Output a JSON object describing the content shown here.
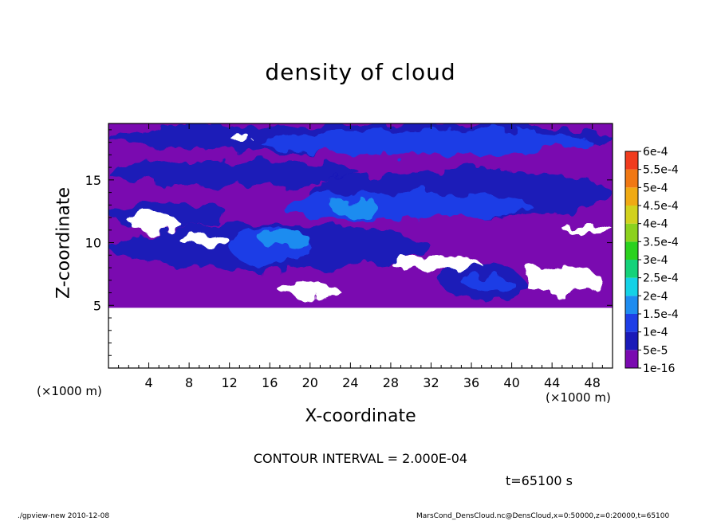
{
  "chart_data": {
    "type": "heatmap",
    "title": "density of cloud",
    "xlabel": "X-coordinate",
    "ylabel": "Z-coordinate",
    "x_unit_label": "(×1000 m)",
    "y_unit_label": "(×1000 m)",
    "xlim": [
      0,
      50
    ],
    "ylim": [
      0,
      19.5
    ],
    "x_ticks": [
      4,
      8,
      12,
      16,
      20,
      24,
      28,
      32,
      36,
      40,
      44,
      48
    ],
    "y_ticks": [
      5,
      10,
      15
    ],
    "colorbar": {
      "levels": [
        "1e-16",
        "5e-5",
        "1e-4",
        "1.5e-4",
        "2e-4",
        "2.5e-4",
        "3e-4",
        "3.5e-4",
        "4e-4",
        "4.5e-4",
        "5e-4",
        "5.5e-4",
        "6e-4"
      ],
      "colors": [
        "#7a0ab0",
        "#1a1ab8",
        "#1e3ee6",
        "#1e8cf0",
        "#14d2e6",
        "#14d27a",
        "#2ad21e",
        "#8cd21e",
        "#d2d21e",
        "#f0aa14",
        "#f07814",
        "#f03c1e",
        "#f09696"
      ]
    },
    "annotation_contour": "CONTOUR INTERVAL = 2.000E-04",
    "annotation_time": "t=65100 s",
    "footer_left": "./gpview-new   2010-12-08",
    "footer_right": "MarsCond_DensCloud.nc@DensCloud,x=0:50000,z=0:20000,t=65100",
    "field": {
      "background_level": "1e-16",
      "cloud_base_z": 4.8,
      "cloud_top_z": 19.5,
      "regions": [
        {
          "level": "5e-5",
          "x": [
            0,
            50
          ],
          "z": [
            17.2,
            19.5
          ]
        },
        {
          "level": "1e-4",
          "x": [
            15,
            48
          ],
          "z": [
            17.0,
            19.0
          ]
        },
        {
          "level": "5e-5",
          "x": [
            0,
            25
          ],
          "z": [
            14.5,
            16.5
          ]
        },
        {
          "level": "5e-5",
          "x": [
            20,
            50
          ],
          "z": [
            12.0,
            15.8
          ]
        },
        {
          "level": "1e-4",
          "x": [
            17,
            42
          ],
          "z": [
            11.8,
            14.0
          ]
        },
        {
          "level": "1.5e-4",
          "x": [
            22,
            27
          ],
          "z": [
            12.2,
            13.4
          ]
        },
        {
          "level": "5e-5",
          "x": [
            0,
            12
          ],
          "z": [
            11.2,
            13.2
          ]
        },
        {
          "level": "5e-5",
          "x": [
            0,
            32
          ],
          "z": [
            7.8,
            11.5
          ]
        },
        {
          "level": "1e-4",
          "x": [
            12,
            20
          ],
          "z": [
            8.2,
            11.2
          ]
        },
        {
          "level": "1.5e-4",
          "x": [
            15,
            20
          ],
          "z": [
            9.5,
            11.0
          ]
        },
        {
          "level": "5e-5",
          "x": [
            33,
            41
          ],
          "z": [
            5.4,
            8.4
          ]
        },
        {
          "level": "1e-4",
          "x": [
            35,
            40
          ],
          "z": [
            6.2,
            7.6
          ]
        }
      ],
      "clear_regions": [
        {
          "x": [
            28,
            37
          ],
          "z": [
            7.8,
            8.8
          ]
        },
        {
          "x": [
            41,
            49
          ],
          "z": [
            6.0,
            8.0
          ]
        },
        {
          "x": [
            17,
            23
          ],
          "z": [
            5.6,
            6.6
          ]
        },
        {
          "x": [
            2,
            7
          ],
          "z": [
            11.0,
            12.2
          ]
        },
        {
          "x": [
            45,
            50
          ],
          "z": [
            10.8,
            11.4
          ]
        },
        {
          "x": [
            7,
            12
          ],
          "z": [
            9.8,
            10.6
          ]
        },
        {
          "x": [
            12,
            14
          ],
          "z": [
            18.2,
            18.7
          ]
        }
      ]
    }
  }
}
